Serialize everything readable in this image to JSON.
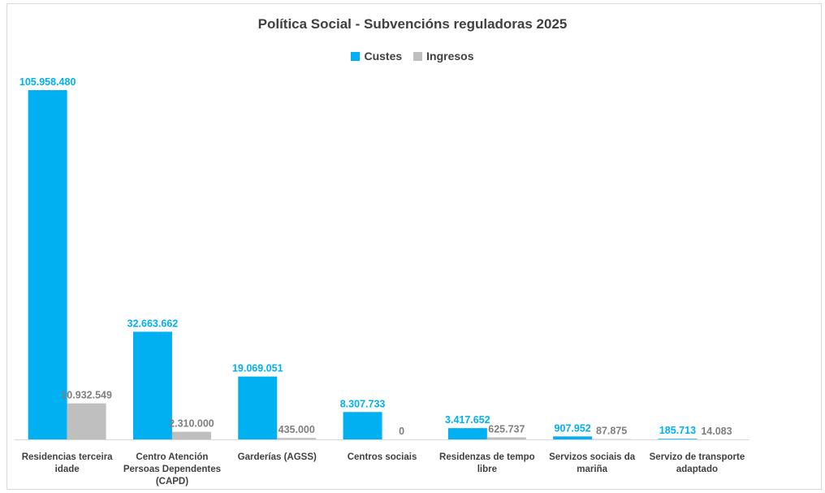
{
  "chart_data": {
    "type": "bar",
    "title": "Política Social - Subvencións reguladoras 2025",
    "xlabel": "",
    "ylabel": "",
    "ylim": [
      0,
      105958480
    ],
    "grid": false,
    "legend_position": "top",
    "categories": [
      [
        "Residencias terceira",
        "idade"
      ],
      [
        "Centro Atención",
        "Persoas Dependentes",
        "(CAPD)"
      ],
      [
        "Garderías (AGSS)"
      ],
      [
        "Centros sociais"
      ],
      [
        "Residenzas de tempo",
        "libre"
      ],
      [
        "Servizos sociais da",
        "mariña"
      ],
      [
        "Servizo de transporte",
        "adaptado"
      ]
    ],
    "series": [
      {
        "name": "Custes",
        "color": "#00b0f0",
        "values": [
          105958480,
          32663662,
          19069051,
          8307733,
          3417652,
          907952,
          185713
        ],
        "labels": [
          "105.958.480",
          "32.663.662",
          "19.069.051",
          "8.307.733",
          "3.417.652",
          "907.952",
          "185.713"
        ]
      },
      {
        "name": "Ingresos",
        "color": "#bfbfbf",
        "label_color": "#7f7f7f",
        "values": [
          10932549,
          2310000,
          435000,
          0,
          625737,
          87875,
          14083
        ],
        "labels": [
          "10.932.549",
          "2.310.000",
          "435.000",
          "0",
          "625.737",
          "87.875",
          "14.083"
        ]
      }
    ]
  }
}
